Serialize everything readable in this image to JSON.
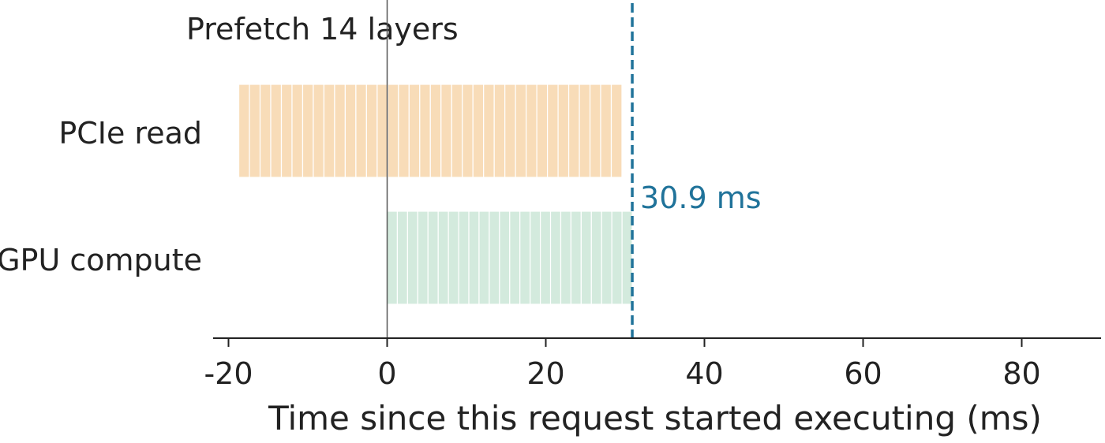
{
  "chart_data": {
    "type": "bar",
    "title": "Prefetch 14 layers",
    "xlabel": "Time since this request started executing (ms)",
    "ylabel": "",
    "xlim": [
      -22,
      90
    ],
    "x_ticks": [
      -20,
      0,
      20,
      40,
      60,
      80
    ],
    "x_tick_labels": [
      "-20",
      "0",
      "20",
      "40",
      "60",
      "80"
    ],
    "categories": [
      "PCIe read",
      "GPU compute"
    ],
    "series": [
      {
        "category": "PCIe read",
        "segments": 36,
        "start": -18.7,
        "end": 29.6,
        "color": "#f8dcb8"
      },
      {
        "category": "GPU compute",
        "segments": 24,
        "start": 0,
        "end": 30.9,
        "color": "#d3eadd"
      }
    ],
    "reference_lines": [
      {
        "x": 0,
        "style": "solid",
        "color": "#555555"
      },
      {
        "x": 30.9,
        "style": "dashed",
        "color": "#20739a",
        "label": "30.9 ms"
      }
    ],
    "grid": false,
    "legend": "none"
  }
}
